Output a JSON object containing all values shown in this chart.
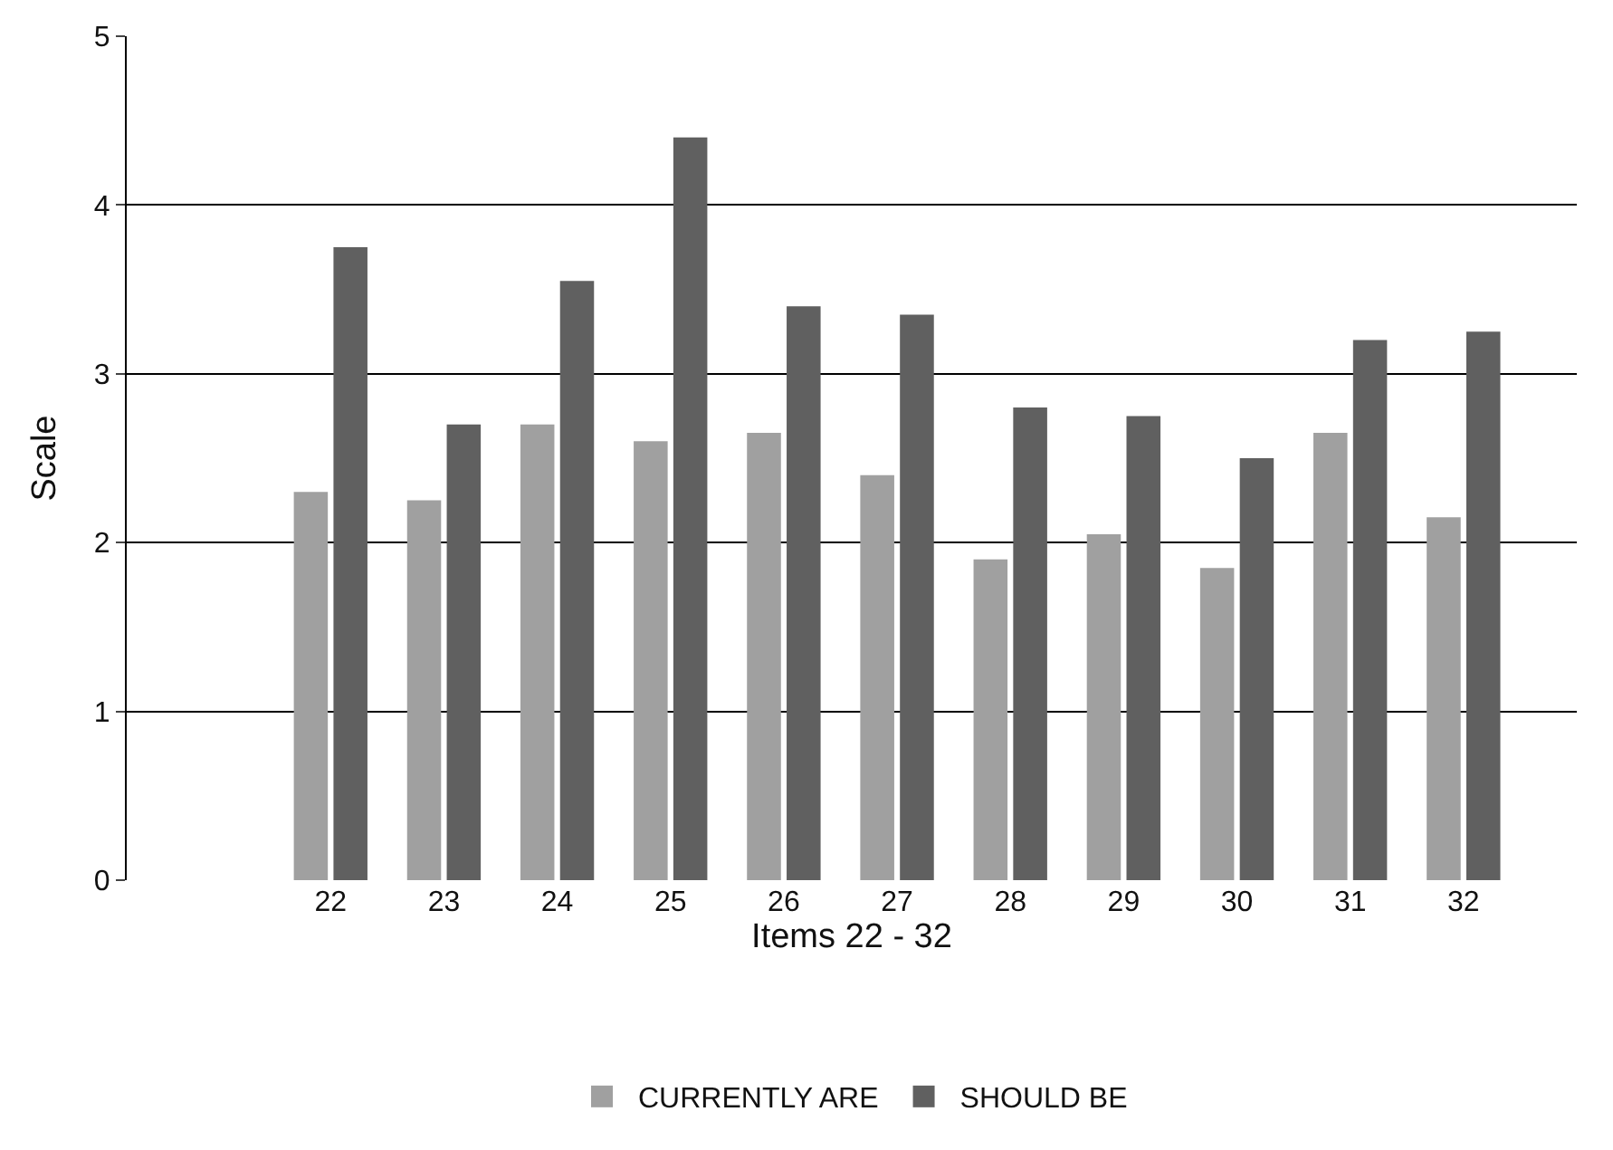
{
  "chart_data": {
    "type": "bar",
    "xlabel": "Items 22 - 32",
    "ylabel": "Scale",
    "categories": [
      "22",
      "23",
      "24",
      "25",
      "26",
      "27",
      "28",
      "29",
      "30",
      "31",
      "32"
    ],
    "series": [
      {
        "name": "CURRENTLY ARE",
        "color": "#a0a0a0",
        "values": [
          2.3,
          2.25,
          2.7,
          2.6,
          2.65,
          2.4,
          1.9,
          2.05,
          1.85,
          2.65,
          2.15
        ]
      },
      {
        "name": "SHOULD BE",
        "color": "#606060",
        "values": [
          3.75,
          2.7,
          3.55,
          4.4,
          3.4,
          3.35,
          2.8,
          2.75,
          2.5,
          3.2,
          3.25
        ]
      }
    ],
    "ylim": [
      0,
      5
    ],
    "yticks": [
      0,
      1,
      2,
      3,
      4,
      5
    ],
    "grid": "y",
    "legend": "bottom"
  }
}
